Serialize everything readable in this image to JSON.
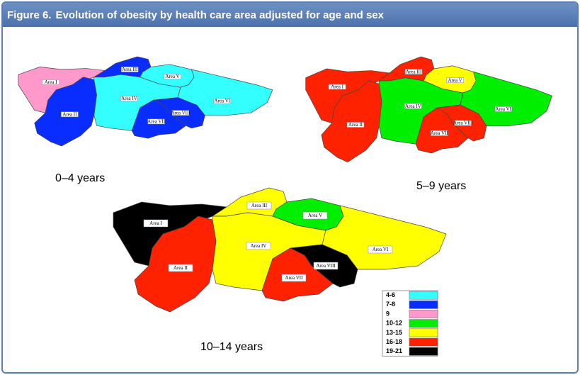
{
  "header": {
    "figure": "Figure 6.",
    "title": "Evolution of obesity by health care area adjusted for age and sex"
  },
  "maps": [
    {
      "caption": "0–4 years",
      "areas": [
        {
          "label": "Area I",
          "color": "#ff99cc"
        },
        {
          "label": "Area II",
          "color": "#0a2dff"
        },
        {
          "label": "Area III",
          "color": "#0a2dff"
        },
        {
          "label": "Area IV",
          "color": "#33ffff"
        },
        {
          "label": "Area V",
          "color": "#33ffff"
        },
        {
          "label": "Area VI",
          "color": "#33ffff"
        },
        {
          "label": "Area VII",
          "color": "#0a2dff"
        },
        {
          "label": "Area VIII",
          "color": "#0a2dff"
        }
      ]
    },
    {
      "caption": "5–9 years",
      "areas": [
        {
          "label": "Area I",
          "color": "#ff2200"
        },
        {
          "label": "Area II",
          "color": "#ff2200"
        },
        {
          "label": "Area III",
          "color": "#ff2200"
        },
        {
          "label": "Area IV",
          "color": "#00ee00"
        },
        {
          "label": "Area V",
          "color": "#ffff00"
        },
        {
          "label": "Area VI",
          "color": "#00ee00"
        },
        {
          "label": "Area VII",
          "color": "#ff2200"
        },
        {
          "label": "Area VIII",
          "color": "#ff2200"
        }
      ]
    },
    {
      "caption": "10–14 years",
      "areas": [
        {
          "label": "Area I",
          "color": "#000000"
        },
        {
          "label": "Area II",
          "color": "#ff2200"
        },
        {
          "label": "Area III",
          "color": "#ffff00"
        },
        {
          "label": "Area IV",
          "color": "#ffff00"
        },
        {
          "label": "Area V",
          "color": "#00ee00"
        },
        {
          "label": "Area VI",
          "color": "#ffff00"
        },
        {
          "label": "Area VII",
          "color": "#ff2200"
        },
        {
          "label": "Area VIII",
          "color": "#000000"
        }
      ]
    }
  ],
  "legend": [
    {
      "label": "4-6",
      "color": "#33ffff"
    },
    {
      "label": "7-8",
      "color": "#0a2dff"
    },
    {
      "label": "9",
      "color": "#ff99cc"
    },
    {
      "label": "10-12",
      "color": "#00ee00"
    },
    {
      "label": "13-15",
      "color": "#ffff00"
    },
    {
      "label": "16-18",
      "color": "#ff2200"
    },
    {
      "label": "19-21",
      "color": "#000000"
    }
  ]
}
